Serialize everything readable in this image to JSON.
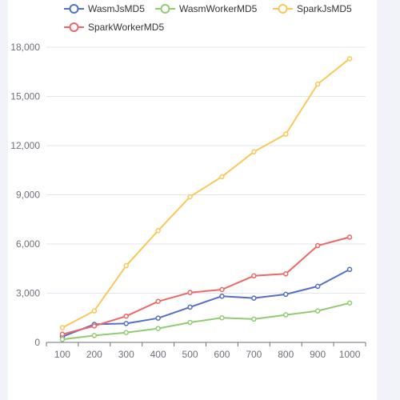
{
  "chart_data": {
    "type": "line",
    "categories": [
      "100",
      "200",
      "300",
      "400",
      "500",
      "600",
      "700",
      "800",
      "900",
      "1000"
    ],
    "series": [
      {
        "name": "WasmJsMD5",
        "color": "#5470c6",
        "values": [
          350,
          1100,
          1150,
          1480,
          2150,
          2820,
          2700,
          2930,
          3420,
          4450
        ]
      },
      {
        "name": "WasmWorkerMD5",
        "color": "#91cc75",
        "values": [
          180,
          420,
          600,
          850,
          1220,
          1500,
          1420,
          1680,
          1920,
          2400
        ]
      },
      {
        "name": "SparkJsMD5",
        "color": "#fac858",
        "values": [
          900,
          1920,
          4680,
          6820,
          8880,
          10100,
          11620,
          12700,
          15750,
          17300
        ]
      },
      {
        "name": "SparkWorkerMD5",
        "color": "#ee6666",
        "values": [
          500,
          1000,
          1600,
          2500,
          3040,
          3220,
          4060,
          4180,
          5900,
          6420
        ]
      }
    ],
    "y_ticks": [
      "0",
      "3,000",
      "6,000",
      "9,000",
      "12,000",
      "15,000",
      "18,000"
    ],
    "ylim": [
      0,
      18000
    ],
    "grid": "horizontal",
    "legend_position": "top"
  }
}
